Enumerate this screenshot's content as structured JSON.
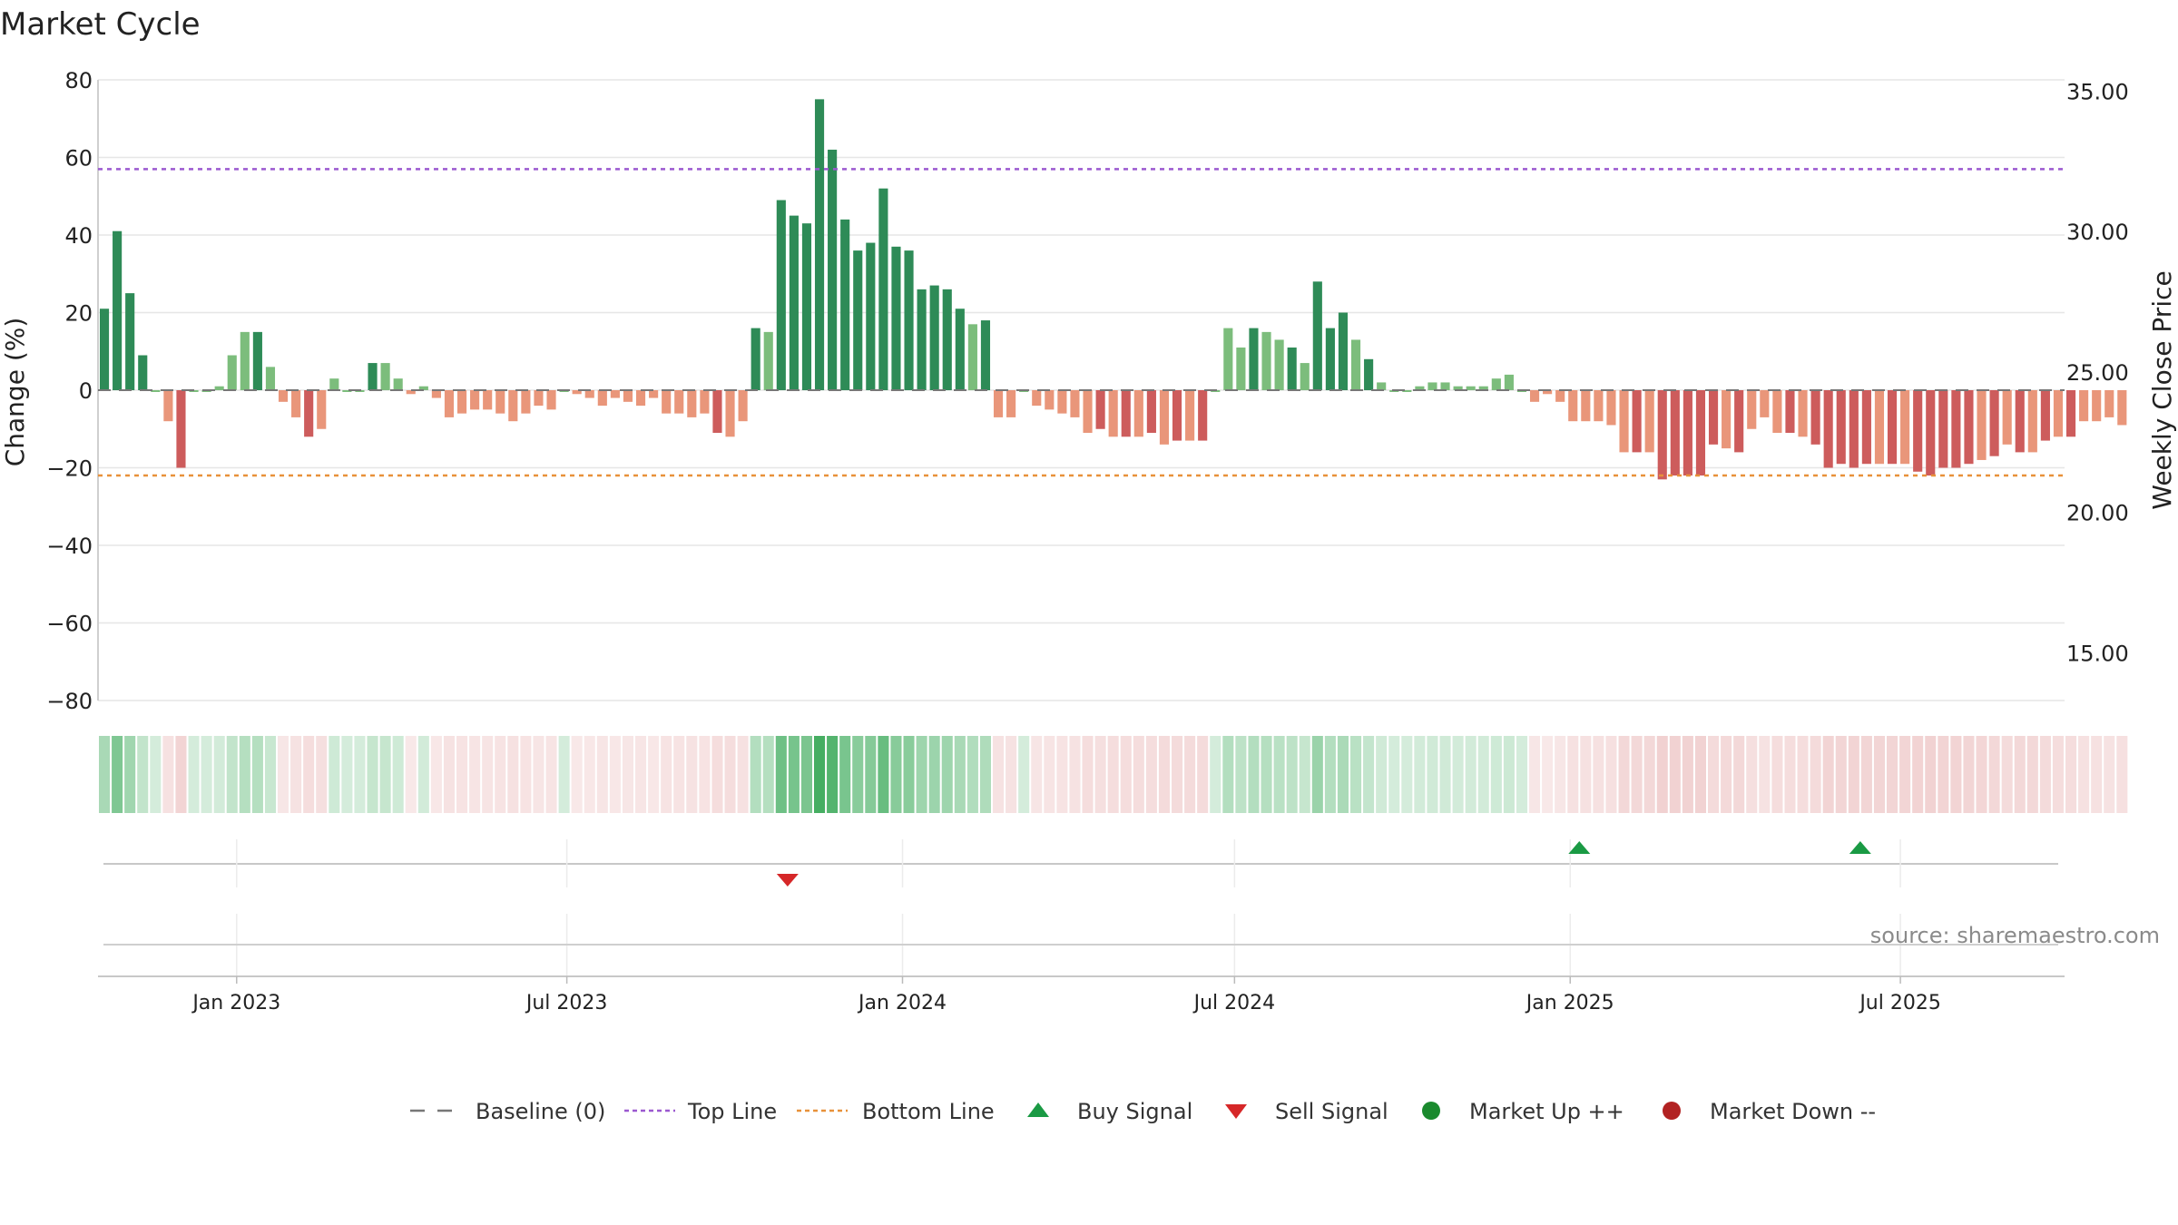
{
  "chart_data": {
    "type": "bar",
    "title": "Market Cycle",
    "ylabel": "Change (%)",
    "y2label": "Weekly Close Price",
    "ylim": [
      -80,
      80
    ],
    "y_ticks": [
      "80",
      "60",
      "40",
      "20",
      "0",
      "−20",
      "−40",
      "−60",
      "−80"
    ],
    "y_tick_values": [
      80,
      60,
      40,
      20,
      0,
      -20,
      -40,
      -60,
      -80
    ],
    "y2lim": [
      13.3,
      35.4
    ],
    "y2_ticks": [
      "35.00",
      "30.00",
      "25.00",
      "20.00",
      "15.00"
    ],
    "y2_tick_values": [
      35,
      30,
      25,
      20,
      15
    ],
    "x_start": "2022-10-17",
    "x_end": "2025-09-29",
    "x_ticks": [
      {
        "label": "Jan 2023",
        "date": "2023-01-01"
      },
      {
        "label": "Jul 2023",
        "date": "2023-07-01"
      },
      {
        "label": "Jan 2024",
        "date": "2024-01-01"
      },
      {
        "label": "Jul 2024",
        "date": "2024-07-01"
      },
      {
        "label": "Jan 2025",
        "date": "2025-01-01"
      },
      {
        "label": "Jul 2025",
        "date": "2025-07-01"
      }
    ],
    "first_week": "2022-10-17",
    "top_line": 57,
    "bottom_line": -22,
    "values": [
      21,
      41,
      25,
      9,
      0,
      -8,
      -20,
      0,
      0,
      1,
      9,
      15,
      15,
      6,
      -3,
      -7,
      -12,
      -10,
      3,
      0,
      0,
      7,
      7,
      3,
      -1,
      1,
      -2,
      -7,
      -6,
      -5,
      -5,
      -6,
      -8,
      -6,
      -4,
      -5,
      0,
      -1,
      -2,
      -4,
      -2,
      -3,
      -4,
      -2,
      -6,
      -6,
      -7,
      -6,
      -11,
      -12,
      -8,
      16,
      15,
      49,
      45,
      43,
      75,
      62,
      44,
      36,
      38,
      52,
      37,
      36,
      26,
      27,
      26,
      21,
      17,
      18,
      -7,
      -7,
      0,
      -4,
      -5,
      -6,
      -7,
      -11,
      -10,
      -12,
      -12,
      -12,
      -11,
      -14,
      -13,
      -13,
      -13,
      0,
      16,
      11,
      16,
      15,
      13,
      11,
      7,
      28,
      16,
      20,
      13,
      8,
      2,
      0,
      0,
      1,
      2,
      2,
      1,
      1,
      1,
      3,
      4,
      0,
      -3,
      -1,
      -3,
      -8,
      -8,
      -8,
      -9,
      -16,
      -16,
      -16,
      -23,
      -22,
      -22,
      -22,
      -14,
      -15,
      -16,
      -10,
      -7,
      -11,
      -11,
      -12,
      -14,
      -20,
      -19,
      -20,
      -19,
      -19,
      -19,
      -19,
      -21,
      -22,
      -20,
      -20,
      -19,
      -18,
      -17,
      -14,
      -16,
      -16,
      -13,
      -12,
      -12,
      -8,
      -8,
      -7,
      -9
    ],
    "signals": [
      {
        "type": "sell",
        "date": "2023-10-30"
      },
      {
        "type": "buy",
        "date": "2025-01-06"
      },
      {
        "type": "buy",
        "date": "2025-06-09"
      }
    ],
    "legend": [
      {
        "label": "Baseline (0)",
        "kind": "dash-line",
        "color": "#777777"
      },
      {
        "label": "Top Line",
        "kind": "dotted-line",
        "color": "#9b59d0"
      },
      {
        "label": "Bottom Line",
        "kind": "dotted-line",
        "color": "#e8913a"
      },
      {
        "label": "Buy Signal",
        "kind": "triangle-up",
        "color": "#1a9a44"
      },
      {
        "label": "Sell Signal",
        "kind": "triangle-down",
        "color": "#d62728"
      },
      {
        "label": "Market Up ++",
        "kind": "circle",
        "color": "#1a8a2e"
      },
      {
        "label": "Market Down --",
        "kind": "circle",
        "color": "#b22222"
      }
    ],
    "legend_position": "bottom-center",
    "grid": true,
    "source": "source: sharemaestro.com",
    "colors": {
      "strong_up": "#2e8b57",
      "up": "#7cbd7c",
      "strong_down": "#cd5c5c",
      "down": "#e9967a",
      "top_line": "#9b59d0",
      "bottom_line": "#e8913a"
    }
  }
}
